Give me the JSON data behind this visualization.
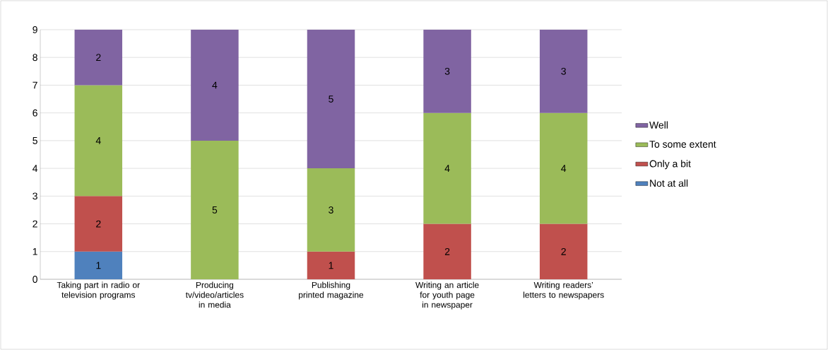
{
  "chart_data": {
    "type": "bar",
    "stacked": true,
    "categories": [
      "Taking part in radio or television programs",
      "Producing tv/video/articles in media",
      "Publishing printed magazine",
      "Writing an article for youth page in newspaper",
      "Writing readers’ letters to newspapers"
    ],
    "series": [
      {
        "name": "Not at all",
        "color": "#4f81bd",
        "values": [
          1,
          null,
          null,
          null,
          null
        ]
      },
      {
        "name": "Only a bit",
        "color": "#c0504d",
        "values": [
          2,
          null,
          1,
          2,
          2
        ]
      },
      {
        "name": "To some extent",
        "color": "#9bbb59",
        "values": [
          4,
          5,
          3,
          4,
          4
        ]
      },
      {
        "name": "Well",
        "color": "#8064a2",
        "values": [
          2,
          4,
          5,
          3,
          3
        ]
      }
    ],
    "ylim": [
      0,
      9
    ],
    "yticks": [
      0,
      1,
      2,
      3,
      4,
      5,
      6,
      7,
      8,
      9
    ],
    "grid": "y",
    "legend": "right",
    "data_labels": true
  }
}
